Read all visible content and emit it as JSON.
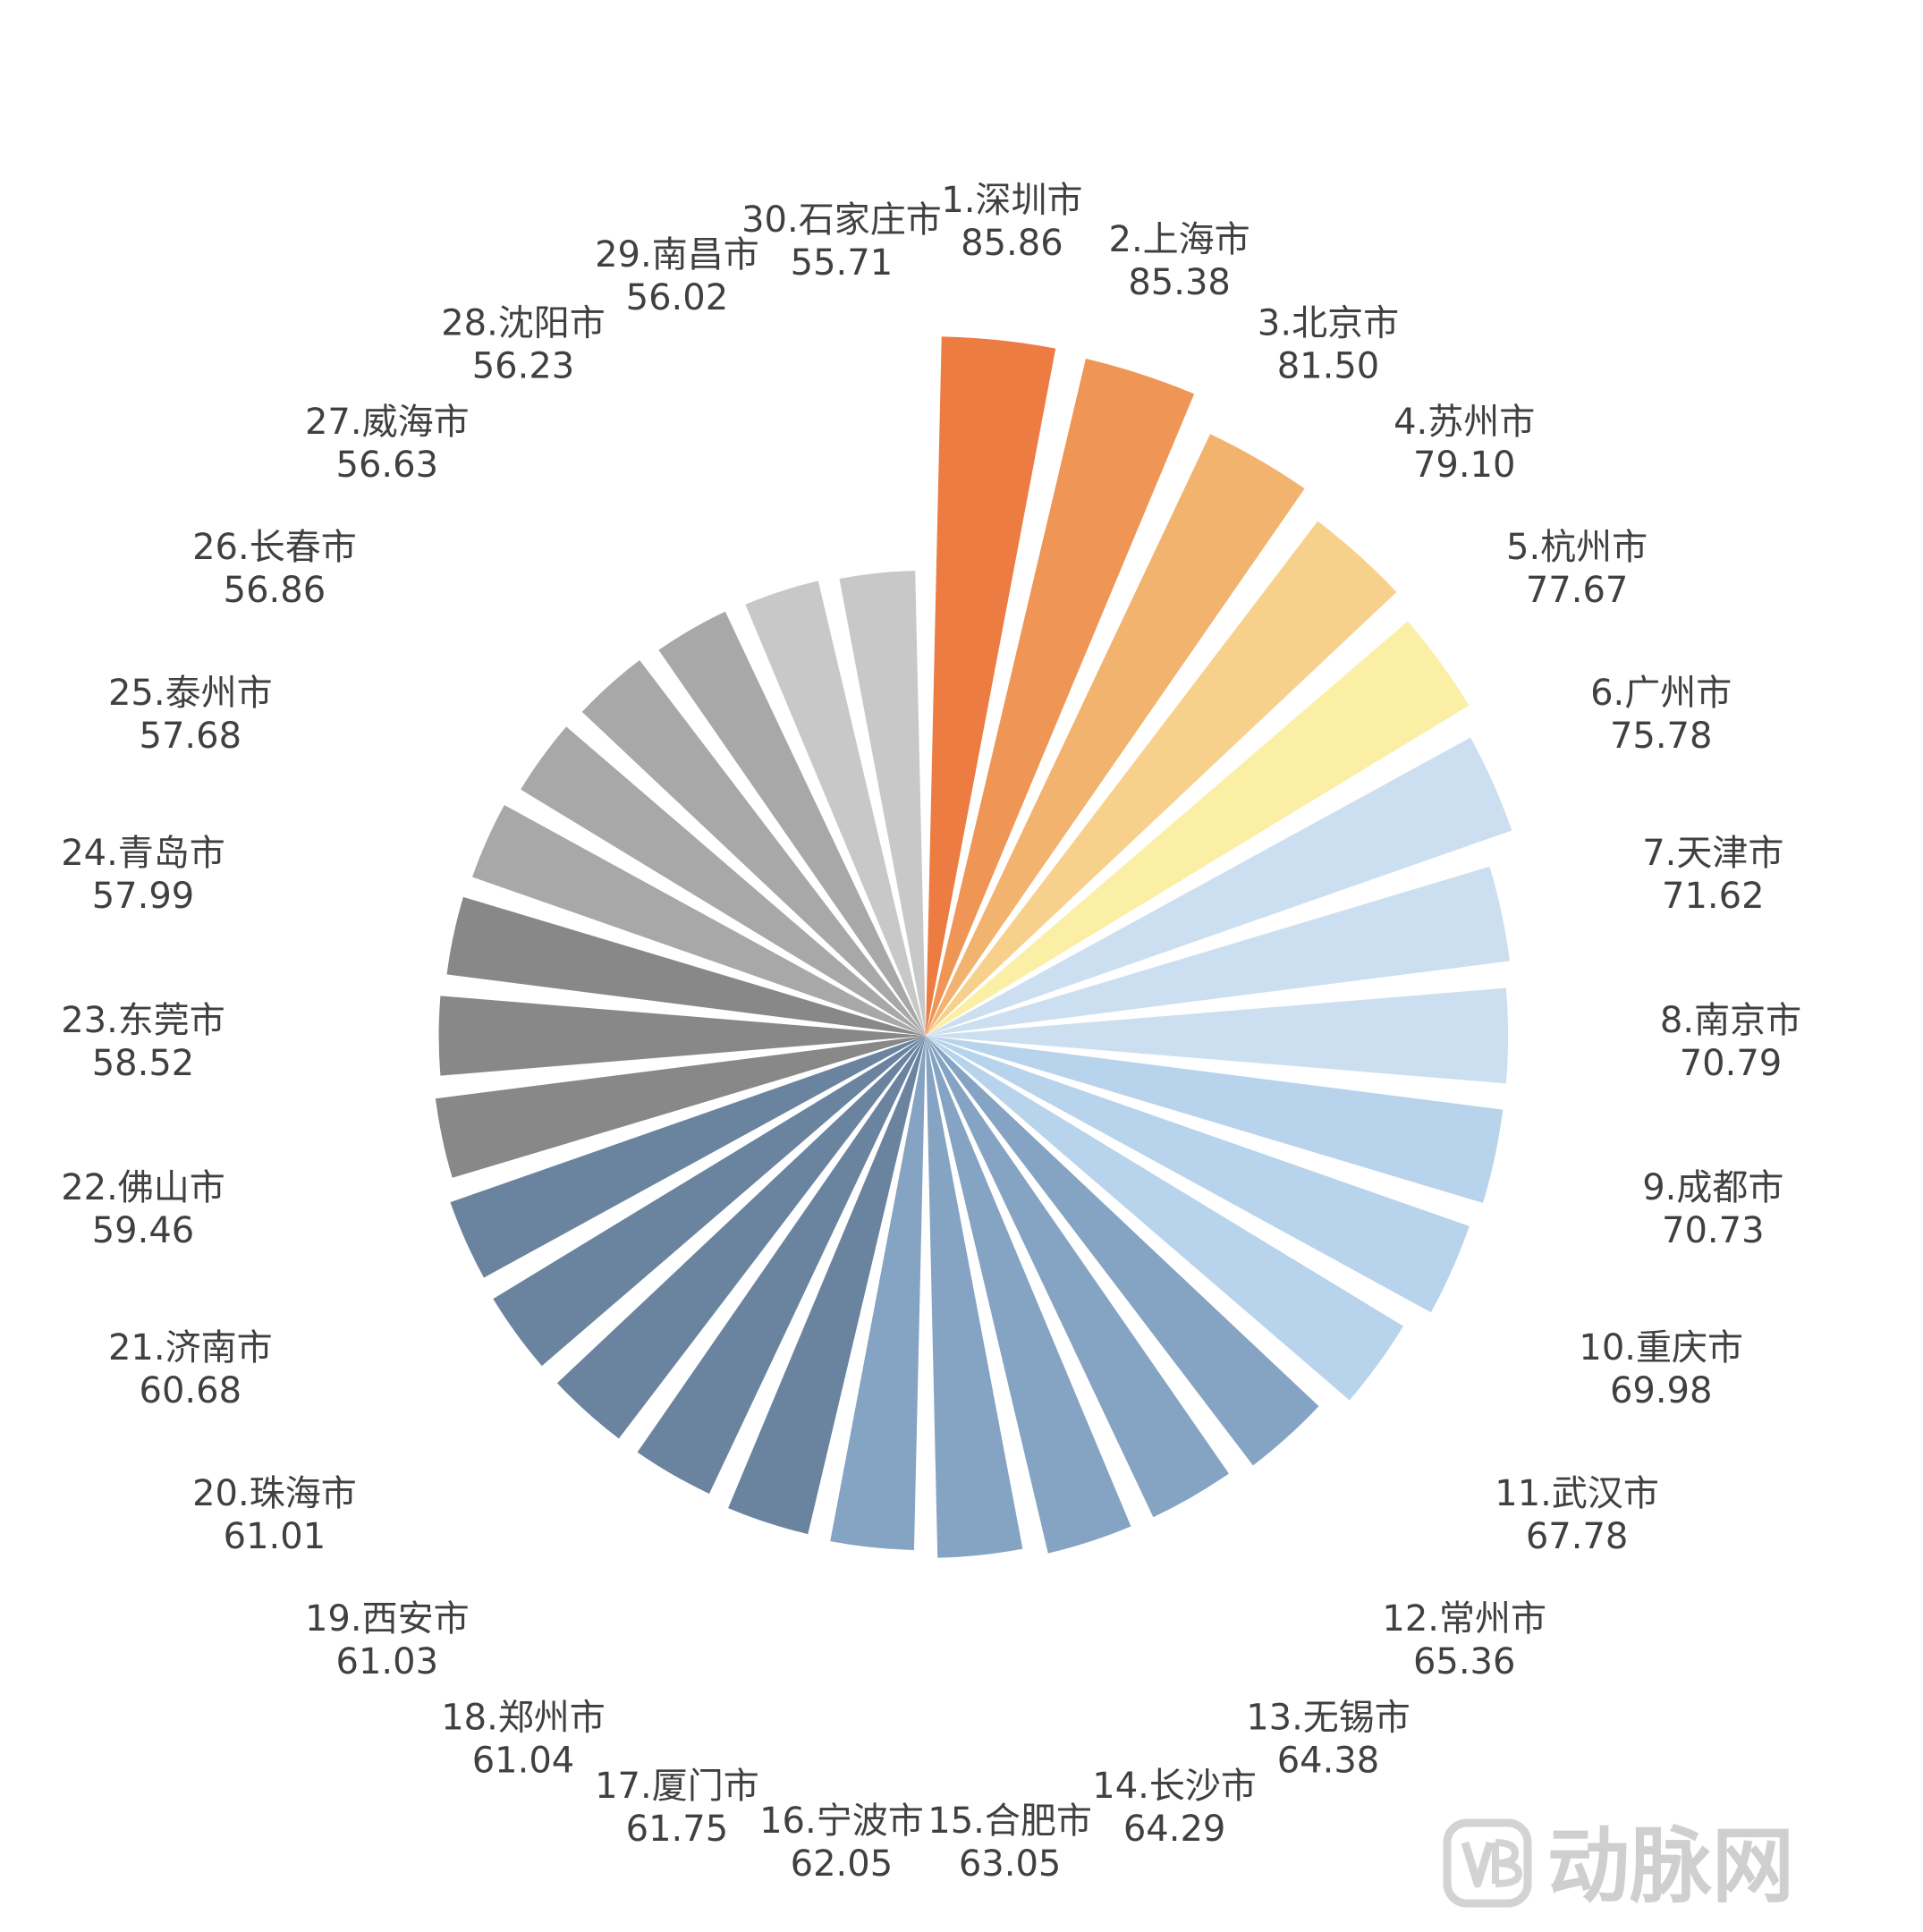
{
  "chart_data": {
    "type": "polar-bar",
    "title": "",
    "categories": [
      "1.深圳市",
      "2.上海市",
      "3.北京市",
      "4.苏州市",
      "5.杭州市",
      "6.广州市",
      "7.天津市",
      "8.南京市",
      "9.成都市",
      "10.重庆市",
      "11.武汉市",
      "12.常州市",
      "13.无锡市",
      "14.长沙市",
      "15.合肥市",
      "16.宁波市",
      "17.厦门市",
      "18.郑州市",
      "19.西安市",
      "20.珠海市",
      "21.济南市",
      "22.佛山市",
      "23.东莞市",
      "24.青岛市",
      "25.泰州市",
      "26.长春市",
      "27.威海市",
      "28.沈阳市",
      "29.南昌市",
      "30.石家庄市"
    ],
    "values": [
      "85.86",
      "85.38",
      "81.50",
      "79.10",
      "77.67",
      "75.78",
      "71.62",
      "70.79",
      "70.73",
      "69.98",
      "67.78",
      "65.36",
      "64.38",
      "64.29",
      "63.05",
      "62.05",
      "61.75",
      "61.04",
      "61.03",
      "61.01",
      "60.68",
      "59.46",
      "58.52",
      "57.99",
      "57.68",
      "56.86",
      "56.63",
      "56.23",
      "56.02",
      "55.71"
    ],
    "colors": [
      "#ec7c41",
      "#ef9555",
      "#f2b36f",
      "#f7d18c",
      "#fbefa6",
      "#ccdff0",
      "#ccdff0",
      "#ccdff0",
      "#b8d3ec",
      "#b8d3ec",
      "#b8d3ec",
      "#85a3c2",
      "#85a3c2",
      "#85a3c2",
      "#85a3c2",
      "#85a3c2",
      "#6a84a0",
      "#6a84a0",
      "#6a84a0",
      "#6a84a0",
      "#6a84a0",
      "#888888",
      "#888888",
      "#888888",
      "#a8a8a8",
      "#a8a8a8",
      "#a8a8a8",
      "#a8a8a8",
      "#c8c8c8",
      "#c8c8c8"
    ],
    "legend": "none"
  },
  "watermark": {
    "text": "动脉网",
    "icon": "vb-logo-icon"
  }
}
